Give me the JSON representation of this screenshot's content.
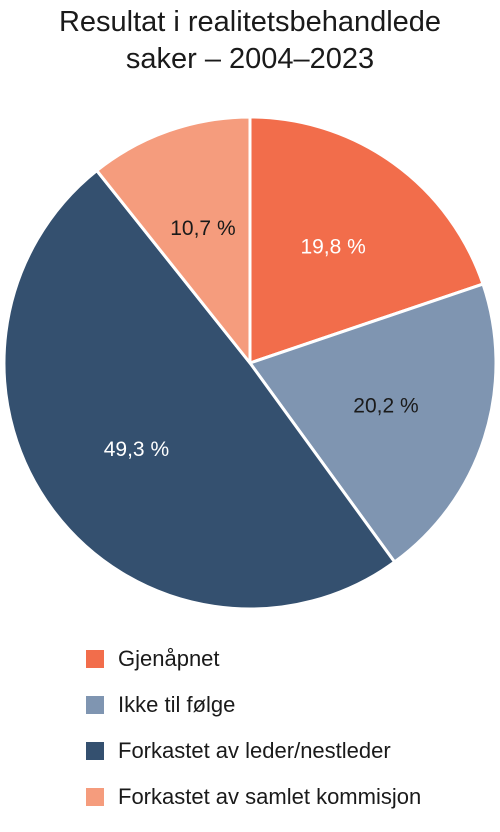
{
  "chart_data": {
    "type": "pie",
    "title_lines": [
      "Resultat i realitetsbehandlede",
      "saker – 2004–2023"
    ],
    "slices": [
      {
        "label": "Gjenåpnet",
        "value": 19.8,
        "display": "19,8 %",
        "color": "#f26d4b",
        "label_color": "#ffffff"
      },
      {
        "label": "Ikke til følge",
        "value": 20.2,
        "display": "20,2 %",
        "color": "#7f95b1",
        "label_color": "#1a1a1a"
      },
      {
        "label": "Forkastet av leder/nestleder",
        "value": 49.3,
        "display": "49,3 %",
        "color": "#34506f",
        "label_color": "#ffffff"
      },
      {
        "label": "Forkastet av samlet kommisjon",
        "value": 10.7,
        "display": "10,7 %",
        "color": "#f59c7d",
        "label_color": "#1a1a1a"
      }
    ],
    "legend_position": "bottom"
  }
}
